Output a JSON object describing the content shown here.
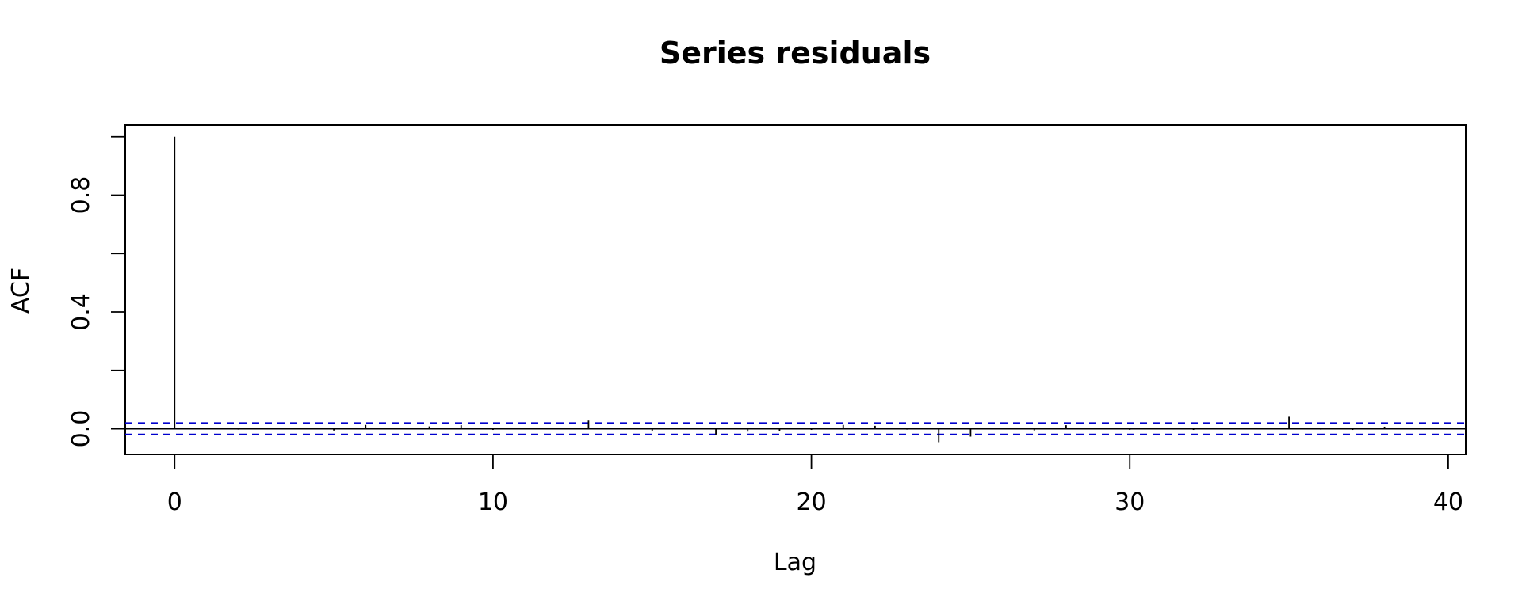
{
  "chart_data": {
    "type": "bar",
    "title": "Series  residuals",
    "xlabel": "Lag",
    "ylabel": "ACF",
    "xlim": [
      -1.55,
      40.55
    ],
    "ylim": [
      -0.088,
      1.04
    ],
    "x_ticks": [
      0,
      10,
      20,
      30,
      40
    ],
    "x_tick_labels": [
      "0",
      "10",
      "20",
      "30",
      "40"
    ],
    "y_ticks": [
      0.0,
      0.2,
      0.4,
      0.6,
      0.8,
      1.0
    ],
    "y_tick_labels": [
      "0.0",
      "",
      "0.4",
      "",
      "0.8",
      ""
    ],
    "grid": false,
    "confidence_bound": 0.0196,
    "confidence_color": "#0000CD",
    "lags": [
      0,
      1,
      2,
      3,
      4,
      5,
      6,
      7,
      8,
      9,
      10,
      11,
      12,
      13,
      14,
      15,
      16,
      17,
      18,
      19,
      20,
      21,
      22,
      23,
      24,
      25,
      26,
      27,
      28,
      29,
      30,
      31,
      32,
      33,
      34,
      35,
      36,
      37,
      38,
      39,
      40
    ],
    "acf": [
      1.0,
      0.002,
      -0.003,
      0.004,
      -0.002,
      -0.006,
      0.013,
      0.003,
      0.008,
      0.012,
      -0.004,
      0.003,
      0.004,
      0.028,
      0.002,
      -0.008,
      0.003,
      -0.02,
      -0.01,
      -0.009,
      -0.004,
      0.013,
      0.01,
      -0.003,
      -0.046,
      -0.027,
      0.004,
      -0.006,
      0.012,
      0.003,
      -0.004,
      0.002,
      -0.004,
      -0.002,
      0.003,
      0.041,
      -0.003,
      -0.004,
      0.007,
      0.002,
      0.003
    ]
  }
}
